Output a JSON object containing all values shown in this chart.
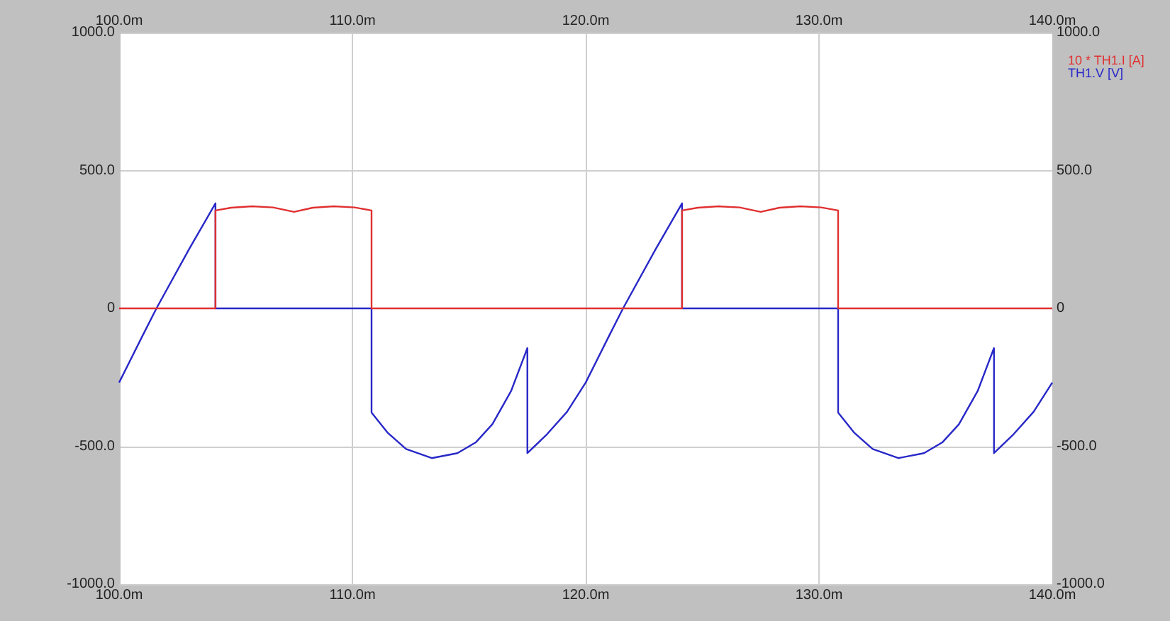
{
  "chart_data": {
    "type": "line",
    "xlim": [
      100,
      140
    ],
    "xticks": [
      {
        "value": 100,
        "label": "100.0m"
      },
      {
        "value": 110,
        "label": "110.0m"
      },
      {
        "value": 120,
        "label": "120.0m"
      },
      {
        "value": 130,
        "label": "130.0m"
      },
      {
        "value": 140,
        "label": "140.0m"
      }
    ],
    "x2lim": [
      100,
      140
    ],
    "x2ticks": [
      {
        "value": 100,
        "label": "100.0m"
      },
      {
        "value": 110,
        "label": "110.0m"
      },
      {
        "value": 120,
        "label": "120.0m"
      },
      {
        "value": 130,
        "label": "130.0m"
      },
      {
        "value": 140,
        "label": "140.0m"
      }
    ],
    "ylim": [
      -1000,
      1000
    ],
    "yticks": [
      {
        "value": -1000,
        "label": "-1000.0"
      },
      {
        "value": -500,
        "label": "-500.0"
      },
      0,
      {
        "value": 500,
        "label": "500.0"
      },
      {
        "value": 1000,
        "label": "1000.0"
      }
    ],
    "y2lim": [
      -1000,
      1000
    ],
    "y2ticks": [
      {
        "value": -1000,
        "label": "-1000.0"
      },
      {
        "value": -500,
        "label": "-500.0"
      },
      0,
      {
        "value": 500,
        "label": "500.0"
      },
      {
        "value": 1000,
        "label": "1000.0"
      }
    ],
    "grid": true,
    "legend": "top right",
    "marker": "none",
    "line_style": "solid",
    "series": [
      {
        "name": "10 * TH1.I [A]",
        "color": "#e03030",
        "x": [
          100,
          104.13,
          104.13,
          104.8,
          105.7,
          106.6,
          107.5,
          108.3,
          109.2,
          110.1,
          110.82,
          110.82,
          124.13,
          124.13,
          124.8,
          125.7,
          126.6,
          127.5,
          128.3,
          129.2,
          130.1,
          130.82,
          130.82,
          140
        ],
        "values": [
          0,
          0,
          355,
          365,
          370,
          366,
          350,
          365,
          370,
          366,
          355,
          0,
          0,
          355,
          365,
          370,
          366,
          350,
          365,
          370,
          366,
          355,
          0,
          0
        ]
      },
      {
        "name": "TH1.V [V]",
        "color": "#2828c8",
        "x": [
          100,
          101,
          101.6,
          103,
          104.13,
          104.13,
          110.82,
          110.82,
          111.5,
          112.3,
          113.4,
          114.5,
          115.3,
          116,
          116.8,
          117.5,
          117.5,
          118.3,
          119.2,
          120,
          121,
          121.6,
          123,
          124.13,
          124.13,
          130.82,
          130.82,
          131.5,
          132.3,
          133.4,
          134.5,
          135.3,
          136,
          136.8,
          137.5,
          137.5,
          138.3,
          139.2,
          140
        ],
        "values": [
          -269,
          -100,
          0,
          215,
          381,
          0,
          0,
          -378,
          -450,
          -510,
          -543,
          -525,
          -485,
          -420,
          -300,
          -144,
          -525,
          -460,
          -375,
          -269,
          -100,
          0,
          215,
          381,
          0,
          0,
          -378,
          -450,
          -510,
          -543,
          -525,
          -485,
          -420,
          -300,
          -144,
          -525,
          -460,
          -375,
          -269
        ]
      }
    ]
  }
}
